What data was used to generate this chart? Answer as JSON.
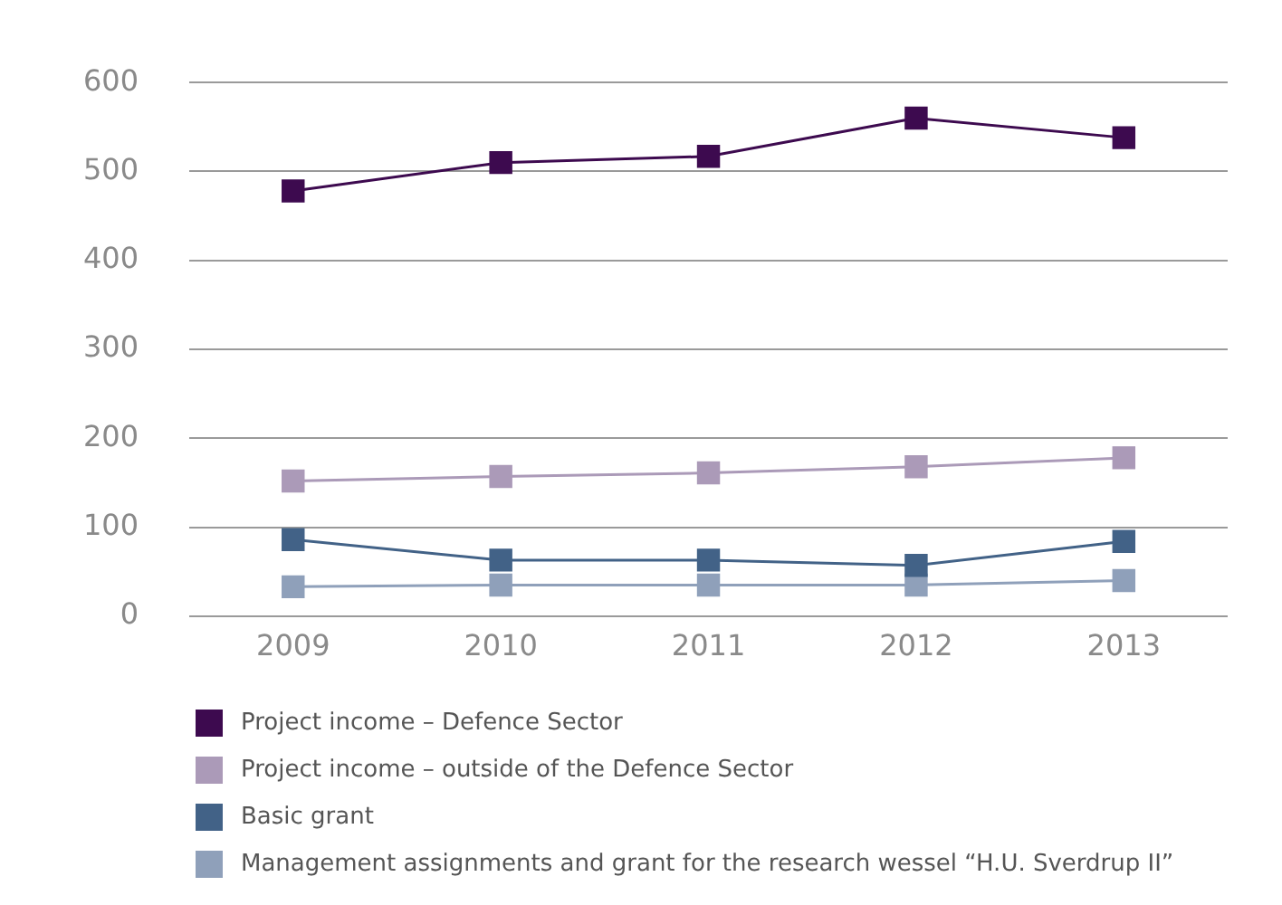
{
  "chart_data": {
    "type": "line",
    "categories": [
      "2009",
      "2010",
      "2011",
      "2012",
      "2013"
    ],
    "series": [
      {
        "name": "Project income – Defence Sector",
        "color": "#3d0a4f",
        "values": [
          478,
          510,
          517,
          560,
          538
        ]
      },
      {
        "name": "Project income – outside of the Defence Sector",
        "color": "#ab9ab8",
        "values": [
          152,
          157,
          161,
          168,
          178
        ]
      },
      {
        "name": "Basic grant",
        "color": "#426287",
        "values": [
          86,
          63,
          63,
          57,
          84
        ]
      },
      {
        "name": "Management assignments and grant for the research wessel “H.U. Sverdrup II”",
        "color": "#8fa0ba",
        "values": [
          33,
          35,
          35,
          35,
          40
        ]
      }
    ],
    "ylim": [
      0,
      600
    ],
    "yticks": [
      0,
      100,
      200,
      300,
      400,
      500,
      600
    ],
    "grid": "y",
    "legend": "bottom",
    "marker": "square",
    "line_style": "solid"
  }
}
